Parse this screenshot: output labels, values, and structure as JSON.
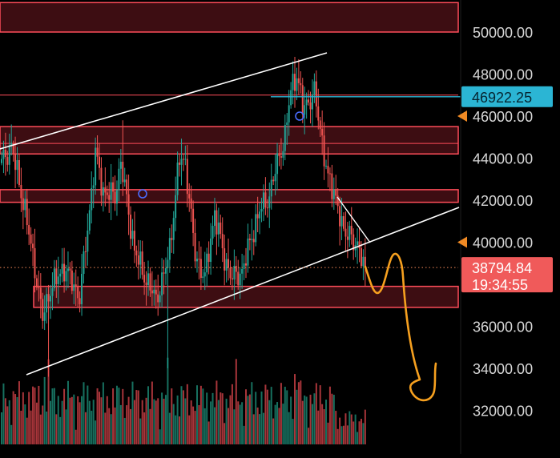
{
  "chart_data": {
    "type": "candlestick",
    "title": "",
    "xlabel": "",
    "ylabel": "",
    "ylim": [
      31000,
      51500
    ],
    "y_ticks": [
      {
        "value": 50000,
        "label": "50000.00"
      },
      {
        "value": 48000,
        "label": "48000.00"
      },
      {
        "value": 46000,
        "label": "46000.00"
      },
      {
        "value": 44000,
        "label": "44000.00"
      },
      {
        "value": 42000,
        "label": "42000.00"
      },
      {
        "value": 40000,
        "label": "40000.00"
      },
      {
        "value": 36000,
        "label": "36000.00"
      },
      {
        "value": 34000,
        "label": "34000.00"
      },
      {
        "value": 32000,
        "label": "32000.00"
      }
    ],
    "price_markers": [
      {
        "value": 46922.25,
        "label": "46922.25",
        "color": "#2bb5d4"
      },
      {
        "value": 38794.84,
        "label": "38794.84",
        "sublabel": "19:34:55",
        "color": "#f05a5a"
      }
    ],
    "alert_markers": [
      46000,
      40000
    ],
    "zones": [
      {
        "low": 50000,
        "high": 51400
      },
      {
        "low": 44200,
        "high": 45500
      },
      {
        "low": 41900,
        "high": 42500
      },
      {
        "low": 36900,
        "high": 37900
      }
    ],
    "extra_lines": [
      44700,
      47000
    ],
    "close_key_points": [
      [
        0,
        43800
      ],
      [
        5,
        44600
      ],
      [
        12,
        41500
      ],
      [
        18,
        38200
      ],
      [
        21,
        36400
      ],
      [
        25,
        37800
      ],
      [
        32,
        38800
      ],
      [
        40,
        37400
      ],
      [
        45,
        41500
      ],
      [
        48,
        44200
      ],
      [
        52,
        42400
      ],
      [
        58,
        42200
      ],
      [
        61,
        43800
      ],
      [
        64,
        42000
      ],
      [
        68,
        39600
      ],
      [
        74,
        38200
      ],
      [
        79,
        37300
      ],
      [
        83,
        38400
      ],
      [
        86,
        39700
      ],
      [
        91,
        44000
      ],
      [
        94,
        43800
      ],
      [
        99,
        39400
      ],
      [
        104,
        38300
      ],
      [
        109,
        41400
      ],
      [
        114,
        39200
      ],
      [
        118,
        38300
      ],
      [
        123,
        38600
      ],
      [
        128,
        40300
      ],
      [
        132,
        41500
      ],
      [
        137,
        42200
      ],
      [
        141,
        43800
      ],
      [
        145,
        45000
      ],
      [
        148,
        47300
      ],
      [
        151,
        48000
      ],
      [
        154,
        46400
      ],
      [
        157,
        46700
      ],
      [
        160,
        47100
      ],
      [
        163,
        45400
      ],
      [
        167,
        43000
      ],
      [
        171,
        42200
      ],
      [
        175,
        40300
      ],
      [
        178,
        40600
      ],
      [
        181,
        39700
      ],
      [
        184,
        39500
      ],
      [
        186,
        38794.84
      ]
    ],
    "volume_note": "volume bars along bottom, green/red by candle direction"
  },
  "colors": {
    "up": "#22a597",
    "down": "#ef5350",
    "zone_fill": "#3d0d12",
    "zone_line": "#ff4d5a",
    "trendline": "#ffffff",
    "projection": "#f6a01f",
    "axis_text": "#d8d8d8"
  }
}
